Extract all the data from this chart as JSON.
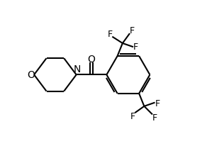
{
  "background_color": "#ffffff",
  "line_color": "#000000",
  "line_width": 1.5,
  "font_size": 9,
  "fig_width": 2.92,
  "fig_height": 2.07,
  "xlim": [
    0,
    10
  ],
  "ylim": [
    0,
    7
  ]
}
